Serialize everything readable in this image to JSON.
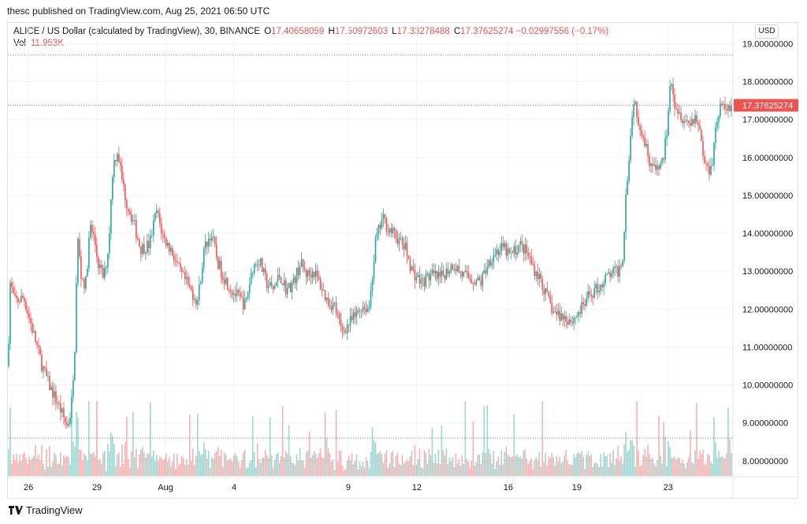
{
  "header": {
    "published": "thesc published on TradingView.com, Aug 25, 2021 06:50 UTC"
  },
  "legend": {
    "symbol": "ALICE / US Dollar (calculated by TradingView), 30, BINANCE",
    "open_label": "O",
    "open": "17.40658059",
    "high_label": "H",
    "high": "17.50972603",
    "low_label": "L",
    "low": "17.33278488",
    "close_label": "C",
    "close": "17.37625274",
    "change": "−0.02997556 (−0.17%)",
    "vol_label": "Vol",
    "vol": "11.953K"
  },
  "currency_button": "USD",
  "last_price_label": "17.37625274",
  "footer": {
    "brand": "TradingView"
  },
  "colors": {
    "up": "#26a69a",
    "down": "#ef5350",
    "grid": "#f0f3fa",
    "axis_text": "#131722"
  },
  "chart_data": {
    "type": "candlestick",
    "interval": "30",
    "ylim": [
      7.6,
      19.55
    ],
    "y_ticks": [
      "19.00000000",
      "18.00000000",
      "17.00000000",
      "16.00000000",
      "15.00000000",
      "14.00000000",
      "13.00000000",
      "12.00000000",
      "11.00000000",
      "10.00000000",
      "9.00000000",
      "8.00000000"
    ],
    "x_ticks": [
      "26",
      "29",
      "Aug",
      "4",
      "9",
      "12",
      "16",
      "19",
      "23"
    ],
    "x_tick_positions_days": [
      1,
      4,
      7,
      10,
      15,
      18,
      22,
      25,
      29
    ],
    "x_range_days": [
      0.1,
      31.8
    ],
    "horizontal_lines": [
      {
        "value": 18.7,
        "color": "#787b86"
      },
      {
        "value": 17.376,
        "color": "#ef5350"
      },
      {
        "value": 8.6,
        "color": "#787b86"
      }
    ],
    "last_price": 17.37625274,
    "price_path": [
      [
        0.1,
        10.5
      ],
      [
        0.2,
        12.7
      ],
      [
        0.4,
        12.2
      ],
      [
        0.8,
        12.3
      ],
      [
        1.2,
        11.4
      ],
      [
        1.6,
        10.5
      ],
      [
        1.9,
        10.0
      ],
      [
        2.3,
        9.5
      ],
      [
        2.7,
        8.9
      ],
      [
        2.85,
        9.3
      ],
      [
        3.0,
        10.3
      ],
      [
        3.15,
        13.9
      ],
      [
        3.3,
        12.9
      ],
      [
        3.5,
        12.6
      ],
      [
        3.7,
        14.2
      ],
      [
        3.9,
        13.8
      ],
      [
        4.05,
        13.2
      ],
      [
        4.3,
        12.8
      ],
      [
        4.5,
        13.6
      ],
      [
        4.7,
        15.8
      ],
      [
        4.9,
        16.2
      ],
      [
        5.1,
        15.4
      ],
      [
        5.3,
        14.8
      ],
      [
        5.6,
        14.3
      ],
      [
        5.9,
        13.6
      ],
      [
        6.3,
        13.7
      ],
      [
        6.6,
        14.6
      ],
      [
        6.9,
        13.9
      ],
      [
        7.3,
        13.5
      ],
      [
        7.6,
        13.0
      ],
      [
        8.0,
        12.6
      ],
      [
        8.4,
        12.2
      ],
      [
        8.7,
        13.6
      ],
      [
        9.0,
        14.0
      ],
      [
        9.3,
        13.2
      ],
      [
        9.6,
        12.8
      ],
      [
        9.9,
        12.5
      ],
      [
        10.2,
        12.3
      ],
      [
        10.5,
        12.1
      ],
      [
        10.8,
        13.1
      ],
      [
        11.1,
        13.3
      ],
      [
        11.4,
        12.7
      ],
      [
        11.7,
        12.5
      ],
      [
        12.0,
        12.9
      ],
      [
        12.3,
        12.5
      ],
      [
        12.6,
        12.7
      ],
      [
        12.9,
        13.2
      ],
      [
        13.2,
        12.9
      ],
      [
        13.5,
        13.0
      ],
      [
        13.8,
        12.6
      ],
      [
        14.1,
        12.2
      ],
      [
        14.4,
        12.1
      ],
      [
        14.7,
        11.4
      ],
      [
        15.0,
        11.6
      ],
      [
        15.3,
        11.8
      ],
      [
        15.6,
        12.1
      ],
      [
        15.9,
        12.0
      ],
      [
        16.2,
        13.8
      ],
      [
        16.5,
        14.4
      ],
      [
        16.8,
        14.1
      ],
      [
        17.1,
        13.9
      ],
      [
        17.5,
        13.6
      ],
      [
        17.8,
        13.0
      ],
      [
        18.2,
        12.7
      ],
      [
        18.6,
        12.9
      ],
      [
        19.0,
        12.8
      ],
      [
        19.3,
        13.0
      ],
      [
        19.6,
        13.2
      ],
      [
        20.0,
        12.9
      ],
      [
        20.4,
        12.8
      ],
      [
        20.8,
        12.7
      ],
      [
        21.1,
        13.2
      ],
      [
        21.4,
        13.5
      ],
      [
        21.8,
        13.6
      ],
      [
        22.1,
        13.4
      ],
      [
        22.5,
        13.7
      ],
      [
        22.8,
        13.5
      ],
      [
        23.1,
        13.1
      ],
      [
        23.4,
        12.8
      ],
      [
        23.7,
        12.3
      ],
      [
        24.0,
        11.9
      ],
      [
        24.4,
        11.8
      ],
      [
        24.8,
        11.7
      ],
      [
        25.2,
        12.0
      ],
      [
        25.6,
        12.4
      ],
      [
        26.0,
        12.6
      ],
      [
        26.4,
        12.9
      ],
      [
        26.8,
        13.0
      ],
      [
        27.0,
        13.3
      ],
      [
        27.15,
        15.0
      ],
      [
        27.3,
        16.2
      ],
      [
        27.5,
        17.6
      ],
      [
        27.7,
        17.0
      ],
      [
        27.9,
        16.6
      ],
      [
        28.2,
        15.9
      ],
      [
        28.5,
        15.6
      ],
      [
        28.8,
        16.0
      ],
      [
        29.0,
        17.0
      ],
      [
        29.1,
        18.3
      ],
      [
        29.3,
        17.4
      ],
      [
        29.6,
        17.1
      ],
      [
        29.9,
        16.9
      ],
      [
        30.2,
        17.1
      ],
      [
        30.4,
        16.7
      ],
      [
        30.6,
        15.8
      ],
      [
        30.8,
        15.7
      ],
      [
        30.95,
        16.0
      ],
      [
        31.1,
        16.9
      ],
      [
        31.3,
        17.4
      ],
      [
        31.5,
        17.2
      ],
      [
        31.7,
        17.376
      ]
    ]
  }
}
